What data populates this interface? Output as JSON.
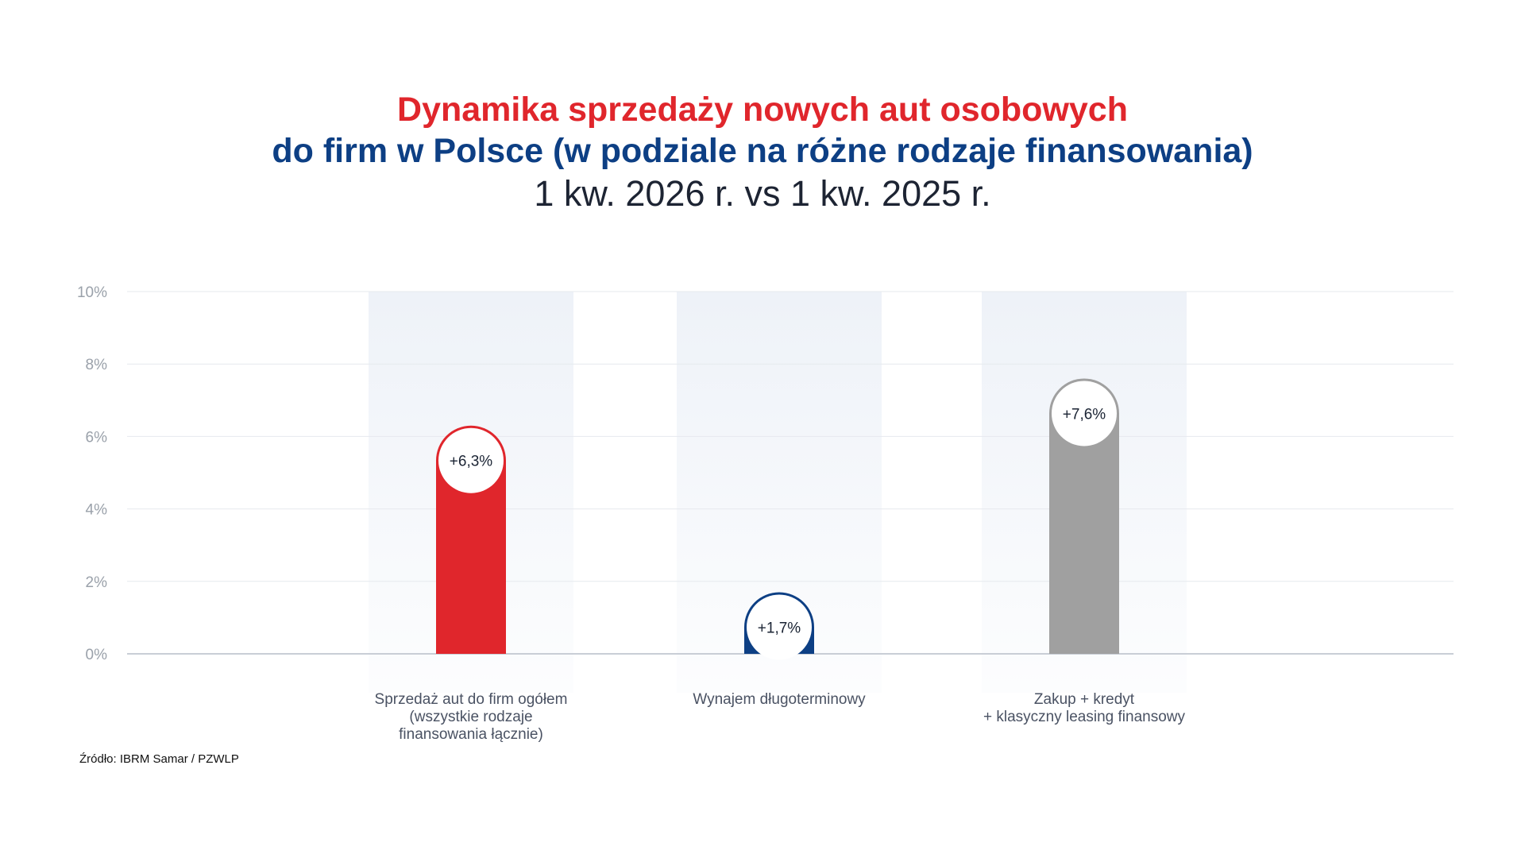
{
  "title_line1": "Dynamika sprzedaży nowych aut osobowych",
  "title_line2": "do firm w Polsce (w podziale na różne rodzaje finansowania)",
  "subtitle": "1 kw. 2026 r. vs 1 kw. 2025 r.",
  "source": "Źródło:  IBRM Samar / PZWLP",
  "colors": {
    "red": "#e0262c",
    "navy": "#0d3f84",
    "gray": "#a0a0a0",
    "band": "#eef2f8"
  },
  "chart_data": {
    "type": "bar",
    "ylim": [
      0,
      10
    ],
    "yticks": [
      "0%",
      "2%",
      "4%",
      "6%",
      "8%",
      "10%"
    ],
    "grid": true,
    "categories": [
      [
        "Sprzedaż aut do firm ogółem",
        "(wszystkie rodzaje",
        "finansowania łącznie)"
      ],
      [
        "Wynajem długoterminowy"
      ],
      [
        "Zakup + kredyt",
        "+ klasyczny leasing finansowy"
      ]
    ],
    "values": [
      6.3,
      1.7,
      7.6
    ],
    "value_labels": [
      "+6,3%",
      "+1,7%",
      "+7,6%"
    ],
    "bar_colors": [
      "#e0262c",
      "#0d3f84",
      "#a0a0a0"
    ]
  }
}
